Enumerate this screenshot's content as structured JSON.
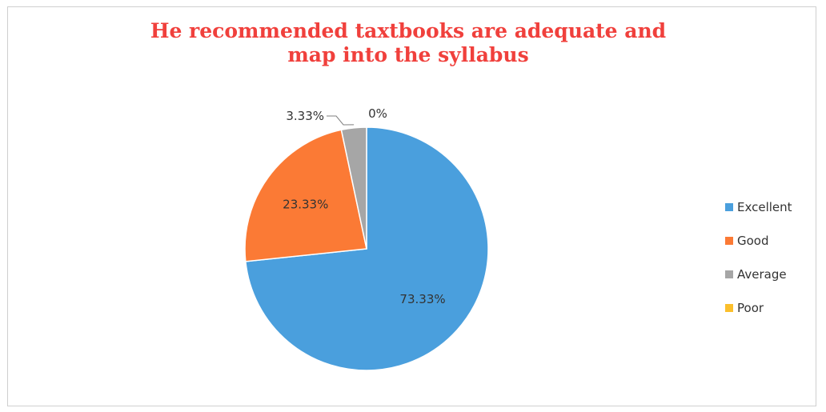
{
  "chart_data": {
    "type": "pie",
    "title": "He recommended taxtbooks are adequate and map into the syllabus",
    "categories": [
      "Excellent",
      "Good",
      "Average",
      "Poor"
    ],
    "values": [
      73.33,
      23.33,
      3.33,
      0
    ],
    "labels": [
      "73.33%",
      "23.33%",
      "3.33%",
      "0%"
    ],
    "colors": [
      "#4a9fdd",
      "#fb7a35",
      "#a6a6a6",
      "#fbbf2c"
    ],
    "legend_position": "right"
  }
}
